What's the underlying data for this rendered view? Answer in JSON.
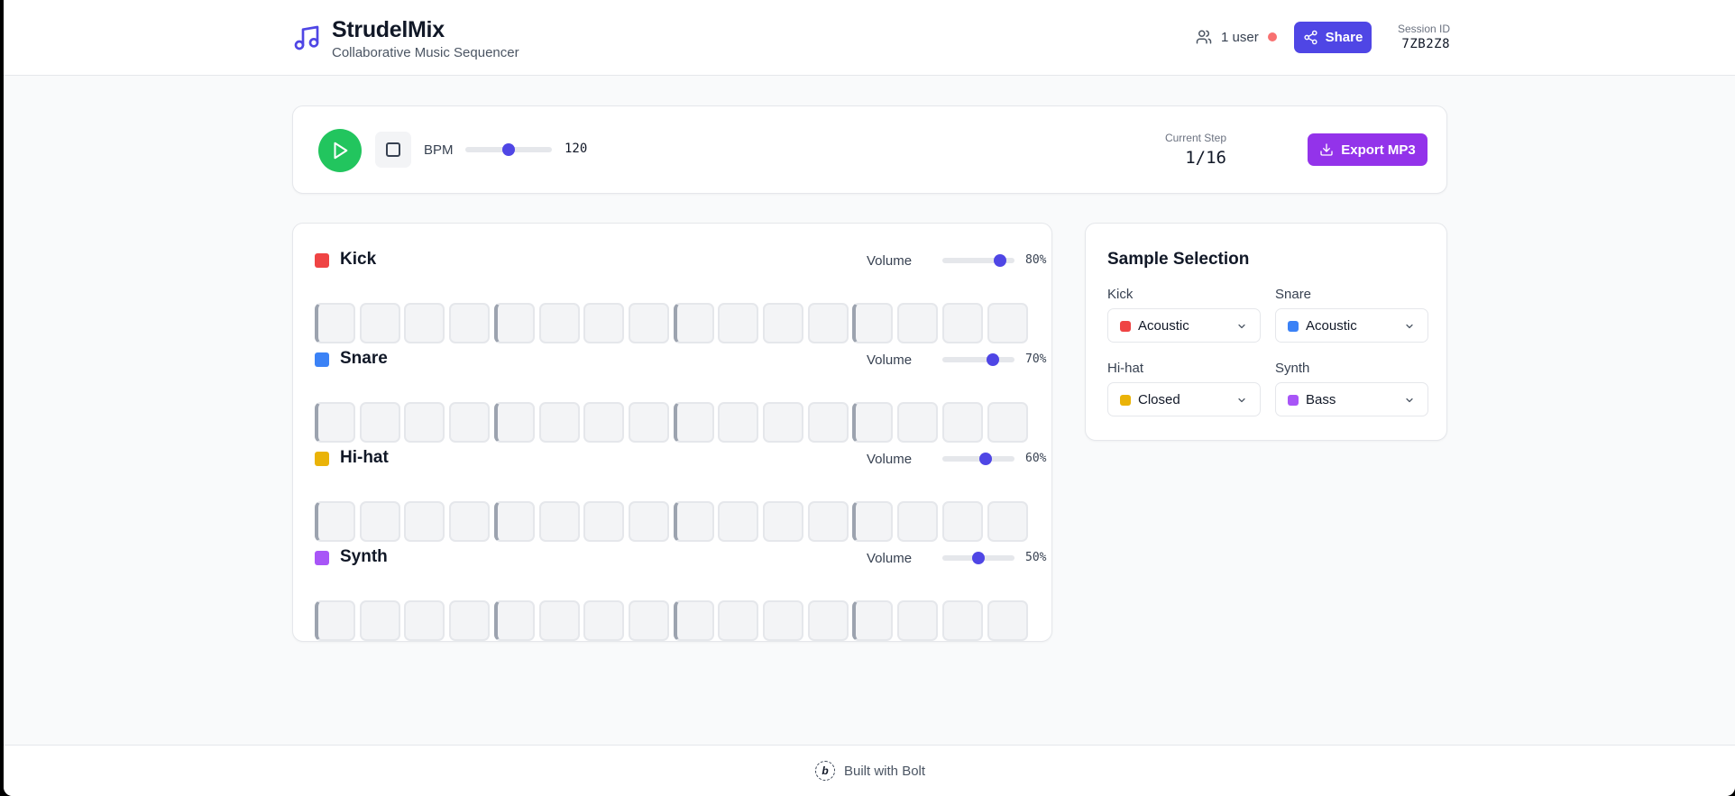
{
  "header": {
    "title": "StrudelMix",
    "subtitle": "Collaborative Music Sequencer",
    "logo_icon": "music-note-icon",
    "users_label": "1 user",
    "status_color": "#f87171",
    "share_label": "Share",
    "session_label": "Session ID",
    "session_id": "7ZB2Z8"
  },
  "transport": {
    "bpm_label": "BPM",
    "bpm_value": "120",
    "bpm": 120,
    "bpm_min": 60,
    "bpm_max": 180,
    "current_step_label": "Current Step",
    "current_step": "1/16",
    "export_label": "Export MP3"
  },
  "sequencer": {
    "step_count": 16,
    "tracks": [
      {
        "name": "Kick",
        "color": "#ef4444",
        "volume_label": "Volume",
        "volume_text": "80%",
        "volume": 0.8
      },
      {
        "name": "Snare",
        "color": "#3b82f6",
        "volume_label": "Volume",
        "volume_text": "70%",
        "volume": 0.7
      },
      {
        "name": "Hi-hat",
        "color": "#eab308",
        "volume_label": "Volume",
        "volume_text": "60%",
        "volume": 0.6
      },
      {
        "name": "Synth",
        "color": "#a855f7",
        "volume_label": "Volume",
        "volume_text": "50%",
        "volume": 0.5
      }
    ]
  },
  "samples": {
    "title": "Sample Selection",
    "items": [
      {
        "label": "Kick",
        "value": "Acoustic",
        "color": "#ef4444"
      },
      {
        "label": "Snare",
        "value": "Acoustic",
        "color": "#3b82f6"
      },
      {
        "label": "Hi-hat",
        "value": "Closed",
        "color": "#eab308"
      },
      {
        "label": "Synth",
        "value": "Bass",
        "color": "#a855f7"
      }
    ]
  },
  "footer": {
    "text": "Built with Bolt"
  },
  "colors": {
    "accent": "#4f46e5",
    "play": "#22c55e",
    "export": "#9333ea"
  }
}
